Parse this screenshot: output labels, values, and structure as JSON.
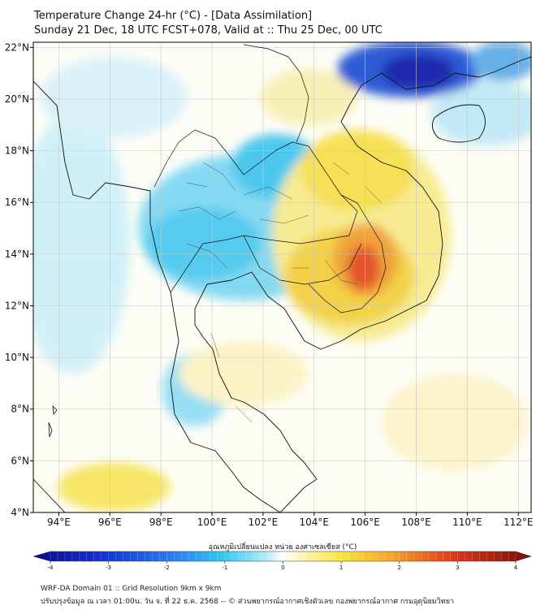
{
  "title": {
    "line1": "Temperature Change 24-hr (°C) - [Data Assimilation]",
    "line2": "Sunday 21 Dec, 18 UTC FCST+078, Valid at :: Thu 25 Dec, 00 UTC"
  },
  "map": {
    "lon_range": [
      93,
      112.5
    ],
    "lat_range": [
      4,
      22.2
    ],
    "lon_ticks": [
      94,
      96,
      98,
      100,
      102,
      104,
      106,
      108,
      110,
      112
    ],
    "lat_ticks": [
      4,
      6,
      8,
      10,
      12,
      14,
      16,
      18,
      20,
      22
    ],
    "lon_labels": [
      "94°E",
      "96°E",
      "98°E",
      "100°E",
      "102°E",
      "104°E",
      "106°E",
      "108°E",
      "110°E",
      "112°E"
    ],
    "lat_labels": [
      "4°N",
      "6°N",
      "8°N",
      "10°N",
      "12°N",
      "14°N",
      "16°N",
      "18°N",
      "20°N",
      "22°N"
    ],
    "features": [
      {
        "name": "cold-core-gulf-of-tonkin",
        "lon": 109.0,
        "lat": 21.3,
        "delta_c": -4.0
      },
      {
        "name": "cold-core-tonkin-east",
        "lon": 107.5,
        "lat": 21.6,
        "delta_c": -3.0
      },
      {
        "name": "cool-laos-north",
        "lon": 102.3,
        "lat": 17.6,
        "delta_c": -1.6
      },
      {
        "name": "cool-central-thailand",
        "lon": 99.7,
        "lat": 14.3,
        "delta_c": -1.4
      },
      {
        "name": "cool-west-thailand",
        "lon": 98.0,
        "lat": 14.6,
        "delta_c": -1.2
      },
      {
        "name": "cool-south-peninsula",
        "lon": 99.8,
        "lat": 8.9,
        "delta_c": -0.8
      },
      {
        "name": "warm-core-cambodia-east",
        "lon": 105.9,
        "lat": 13.6,
        "delta_c": 3.2
      },
      {
        "name": "warm-cambodia-plain",
        "lon": 104.8,
        "lat": 12.7,
        "delta_c": 1.8
      },
      {
        "name": "warm-vietnam-central",
        "lon": 105.6,
        "lat": 16.2,
        "delta_c": 1.5
      },
      {
        "name": "warm-andaman-south",
        "lon": 96.0,
        "lat": 5.0,
        "delta_c": 1.3
      },
      {
        "name": "warm-north-laos",
        "lon": 104.8,
        "lat": 19.5,
        "delta_c": 0.9
      },
      {
        "name": "warm-gulf-thailand",
        "lon": 101.0,
        "lat": 9.3,
        "delta_c": 0.6
      }
    ]
  },
  "colorbar": {
    "label": "อุณหภูมิเปลี่ยนแปลง หน่วย องศาเซลเซียส (°C)",
    "ticks": [
      "-4",
      "-3",
      "-2",
      "-1",
      "0",
      "1",
      "2",
      "3",
      "4"
    ],
    "tick_values": [
      -4,
      -3,
      -2,
      -1,
      0,
      1,
      2,
      3,
      4
    ],
    "range": [
      -4,
      4
    ]
  },
  "footer": {
    "line1": "WRF-DA Domain 01 :: Grid Resolution 9km x 9km",
    "line2": "ปรับปรุงข้อมูล ณ เวลา 01:00น. วัน จ. ที่ 22 ธ.ค. 2568 -- © ส่วนพยากรณ์อากาศเชิงตัวเลข กองพยากรณ์อากาศ กรมอุตุนิยมวิทยา"
  },
  "colors": {
    "cold": "#1a2aa8",
    "cool": "#22c2ea",
    "neutral": "#ffffff",
    "warm": "#f5de3c",
    "hot": "#e0301a"
  }
}
